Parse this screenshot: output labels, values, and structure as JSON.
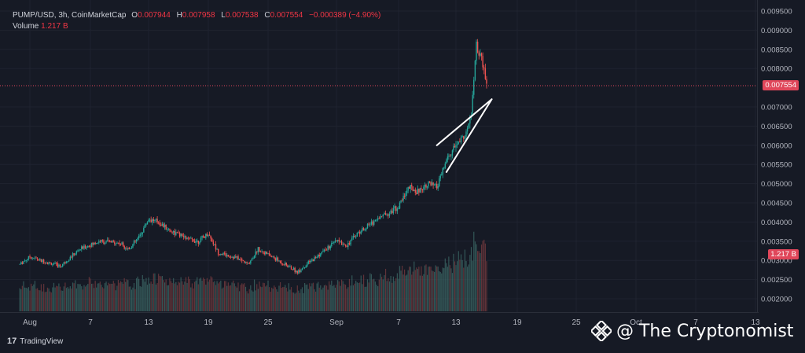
{
  "header": {
    "symbol": "PUMP/USD, 3h, CoinMarketCap",
    "open_key": "O",
    "open": "0.007944",
    "high_key": "H",
    "high": "0.007958",
    "low_key": "L",
    "low": "0.007538",
    "close_key": "C",
    "close": "0.007554",
    "change": "−0.000389 (−4.90%)",
    "volume_key": "Volume",
    "volume": "1.217 B"
  },
  "price_label": "0.007554",
  "volume_label": "1.217 B",
  "brand": {
    "logo": "17",
    "text": "TradingView"
  },
  "watermark": {
    "text": "@ The Cryptonomist"
  },
  "colors": {
    "background": "#161a25",
    "up": "#26a69a",
    "down": "#ef5350",
    "volume_bar": "#5c6270",
    "axis_text": "#b2b5be",
    "price_line": "#e0465a"
  },
  "chart_data": {
    "type": "candlestick",
    "title": "PUMP/USD, 3h, CoinMarketCap",
    "x_tick_labels": [
      "Aug",
      "7",
      "13",
      "19",
      "25",
      "Sep",
      "7",
      "13",
      "19",
      "25",
      "Oct",
      "7",
      "13"
    ],
    "x_ticks": [
      "2025-08-01",
      "2025-08-07",
      "2025-08-13",
      "2025-08-19",
      "2025-08-25",
      "2025-09-01",
      "2025-09-07",
      "2025-09-13",
      "2025-09-19",
      "2025-09-25",
      "2025-10-01",
      "2025-10-07",
      "2025-10-13"
    ],
    "x_range": [
      "2025-07-31",
      "2025-10-13"
    ],
    "y_tick_labels": [
      "0.009500",
      "0.009000",
      "0.008500",
      "0.008000",
      "0.007000",
      "0.006500",
      "0.006000",
      "0.005500",
      "0.005000",
      "0.004500",
      "0.004000",
      "0.003500",
      "0.003000",
      "0.002500",
      "0.002000"
    ],
    "y_ticks": [
      0.0095,
      0.009,
      0.0085,
      0.008,
      0.007,
      0.0065,
      0.006,
      0.0055,
      0.005,
      0.0045,
      0.004,
      0.0035,
      0.003,
      0.0025,
      0.002
    ],
    "ylim": [
      0.0017,
      0.0097
    ],
    "last_price": 0.007554,
    "price_path": [
      [
        "2025-07-31",
        0.0029
      ],
      [
        "2025-08-01",
        0.0031
      ],
      [
        "2025-08-02",
        0.003
      ],
      [
        "2025-08-04",
        0.00285
      ],
      [
        "2025-08-06",
        0.0033
      ],
      [
        "2025-08-08",
        0.0035
      ],
      [
        "2025-08-10",
        0.00345
      ],
      [
        "2025-08-11",
        0.0033
      ],
      [
        "2025-08-12",
        0.0036
      ],
      [
        "2025-08-13",
        0.00408
      ],
      [
        "2025-08-14",
        0.004
      ],
      [
        "2025-08-15",
        0.0038
      ],
      [
        "2025-08-17",
        0.00355
      ],
      [
        "2025-08-18",
        0.0035
      ],
      [
        "2025-08-19",
        0.0037
      ],
      [
        "2025-08-20",
        0.0032
      ],
      [
        "2025-08-22",
        0.00305
      ],
      [
        "2025-08-23",
        0.0029
      ],
      [
        "2025-08-24",
        0.0033
      ],
      [
        "2025-08-26",
        0.003
      ],
      [
        "2025-08-28",
        0.0027
      ],
      [
        "2025-08-30",
        0.0031
      ],
      [
        "2025-09-01",
        0.0035
      ],
      [
        "2025-09-02",
        0.0034
      ],
      [
        "2025-09-03",
        0.0037
      ],
      [
        "2025-09-05",
        0.0041
      ],
      [
        "2025-09-07",
        0.0044
      ],
      [
        "2025-09-08",
        0.0049
      ],
      [
        "2025-09-09",
        0.0048
      ],
      [
        "2025-09-10",
        0.005
      ],
      [
        "2025-09-11",
        0.0049
      ],
      [
        "2025-09-12",
        0.0056
      ],
      [
        "2025-09-13",
        0.006
      ],
      [
        "2025-09-14",
        0.0063
      ],
      [
        "2025-09-14T12:00",
        0.0068
      ],
      [
        "2025-09-15",
        0.0086
      ],
      [
        "2025-09-15T12:00",
        0.0082
      ],
      [
        "2025-09-16",
        0.007554
      ]
    ],
    "volume_label_value": "1.217 B",
    "annotation": {
      "type": "rising-wedge",
      "upper": [
        [
          "2025-09-11",
          0.006
        ],
        [
          "2025-09-16T12:00",
          0.0072
        ]
      ],
      "lower": [
        [
          "2025-09-12",
          0.0053
        ],
        [
          "2025-09-16T12:00",
          0.0072
        ]
      ]
    }
  }
}
